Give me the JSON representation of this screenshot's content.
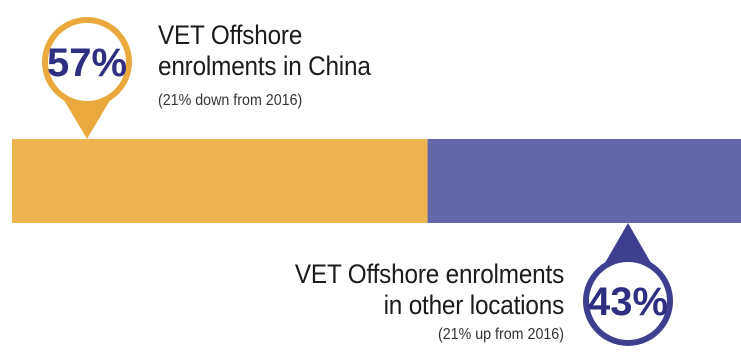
{
  "chart_data": {
    "type": "bar",
    "orientation": "horizontal-stacked",
    "categories": [
      "China",
      "Other locations"
    ],
    "values": [
      57,
      43
    ],
    "unit": "%",
    "value_labels": [
      "57%",
      "43%"
    ],
    "series_titles": [
      "VET Offshore enrolments in China",
      "VET Offshore enrolments in other locations"
    ],
    "title_lines": [
      [
        "VET Offshore",
        "enrolments in China"
      ],
      [
        "VET Offshore enrolments",
        "in other locations"
      ]
    ],
    "notes": [
      "(21% down from 2016)",
      "(21% up from 2016)"
    ],
    "changes_from_2016": [
      -21,
      21
    ],
    "colors": [
      "#eeb44f",
      "#6467a9"
    ],
    "pin_ring_colors": [
      "#e9a93c",
      "#3f3f8f"
    ],
    "pin_text_color": "#2e2f80",
    "xlim": [
      0,
      100
    ],
    "grid": false,
    "legend": "none"
  }
}
